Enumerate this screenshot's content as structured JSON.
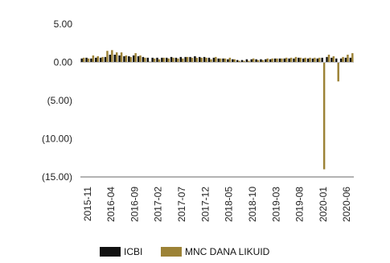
{
  "chart_data": {
    "type": "bar",
    "y_ticks": [
      "5.00",
      "0.00",
      "(5.00)",
      "(10.00)",
      "(15.00)"
    ],
    "ylim": [
      -15,
      5
    ],
    "x_tick_labels": [
      "2015-11",
      "2016-04",
      "2016-09",
      "2017-02",
      "2017-07",
      "2017-12",
      "2018-05",
      "2018-10",
      "2019-03",
      "2019-08",
      "2020-01",
      "2020-06"
    ],
    "periods": [
      "2015-10",
      "2015-11",
      "2015-12",
      "2016-01",
      "2016-02",
      "2016-03",
      "2016-04",
      "2016-05",
      "2016-06",
      "2016-07",
      "2016-08",
      "2016-09",
      "2016-10",
      "2016-11",
      "2016-12",
      "2017-01",
      "2017-02",
      "2017-03",
      "2017-04",
      "2017-05",
      "2017-06",
      "2017-07",
      "2017-08",
      "2017-09",
      "2017-10",
      "2017-11",
      "2017-12",
      "2018-01",
      "2018-02",
      "2018-03",
      "2018-04",
      "2018-05",
      "2018-06",
      "2018-07",
      "2018-08",
      "2018-09",
      "2018-10",
      "2018-11",
      "2018-12",
      "2019-01",
      "2019-02",
      "2019-03",
      "2019-04",
      "2019-05",
      "2019-06",
      "2019-07",
      "2019-08",
      "2019-09",
      "2019-10",
      "2019-11",
      "2019-12",
      "2020-01",
      "2020-02",
      "2020-03",
      "2020-04",
      "2020-05",
      "2020-06",
      "2020-07"
    ],
    "series": [
      {
        "name": "ICBI",
        "color": "#111111",
        "values": [
          0.5,
          0.6,
          0.5,
          0.6,
          0.6,
          0.7,
          1.0,
          1.0,
          0.9,
          0.8,
          0.8,
          0.9,
          0.8,
          0.7,
          0.6,
          0.6,
          0.6,
          0.6,
          0.6,
          0.7,
          0.6,
          0.7,
          0.7,
          0.7,
          0.8,
          0.7,
          0.7,
          0.6,
          0.6,
          0.5,
          0.5,
          0.4,
          0.4,
          0.3,
          0.3,
          0.4,
          0.4,
          0.4,
          0.4,
          0.4,
          0.4,
          0.5,
          0.5,
          0.5,
          0.5,
          0.5,
          0.6,
          0.5,
          0.5,
          0.5,
          0.5,
          0.6,
          0.7,
          0.6,
          0.5,
          0.5,
          0.6,
          0.6
        ]
      },
      {
        "name": "MNC DANA LIKUID",
        "color": "#9c8236",
        "values": [
          0.6,
          0.5,
          0.9,
          0.8,
          0.7,
          1.5,
          1.6,
          1.3,
          1.3,
          0.9,
          0.7,
          1.2,
          0.9,
          0.6,
          0.1,
          0.5,
          0.4,
          0.6,
          0.5,
          0.6,
          0.5,
          0.5,
          0.7,
          0.6,
          0.6,
          0.6,
          0.6,
          0.4,
          0.7,
          0.5,
          0.5,
          0.6,
          0.4,
          0.2,
          0.2,
          0.2,
          0.5,
          0.3,
          0.3,
          0.5,
          0.5,
          0.5,
          0.5,
          0.6,
          0.6,
          0.7,
          0.6,
          0.6,
          0.6,
          0.6,
          0.6,
          -14.0,
          1.0,
          0.8,
          -2.5,
          0.7,
          1.0,
          1.2
        ]
      }
    ],
    "legend_position": "bottom",
    "grid": false
  }
}
